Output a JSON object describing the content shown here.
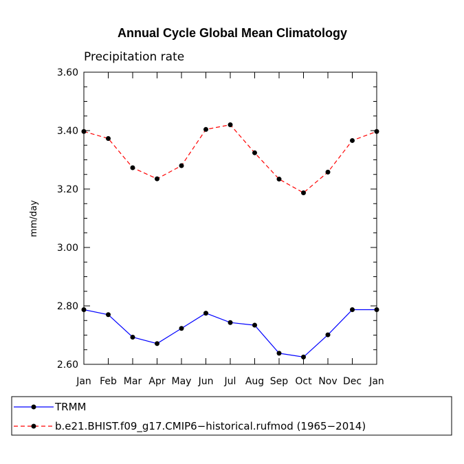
{
  "chart_data": {
    "type": "line",
    "title": "Annual Cycle Global Mean Climatology",
    "subtitle": "Precipitation rate",
    "xlabel": "",
    "ylabel": "mm/day",
    "ylim": [
      2.6,
      3.6
    ],
    "yticks": [
      "2.60",
      "2.80",
      "3.00",
      "3.20",
      "3.40",
      "3.60"
    ],
    "ytick_values": [
      2.6,
      2.8,
      3.0,
      3.2,
      3.4,
      3.6
    ],
    "categories": [
      "Jan",
      "Feb",
      "Mar",
      "Apr",
      "May",
      "Jun",
      "Jul",
      "Aug",
      "Sep",
      "Oct",
      "Nov",
      "Dec",
      "Jan"
    ],
    "grid": false,
    "legend_position": "bottom",
    "series": [
      {
        "name": "TRMM",
        "color": "#0000ff",
        "dash": "solid",
        "values": [
          2.787,
          2.77,
          2.693,
          2.671,
          2.723,
          2.775,
          2.743,
          2.734,
          2.638,
          2.625,
          2.701,
          2.787,
          2.787
        ]
      },
      {
        "name": "b.e21.BHIST.f09_g17.CMIP6−historical.rufmod (1965−2014)",
        "color": "#ff0000",
        "dash": "dashed",
        "values": [
          3.397,
          3.373,
          3.273,
          3.235,
          3.28,
          3.404,
          3.42,
          3.324,
          3.234,
          3.187,
          3.258,
          3.366,
          3.397
        ]
      }
    ]
  }
}
